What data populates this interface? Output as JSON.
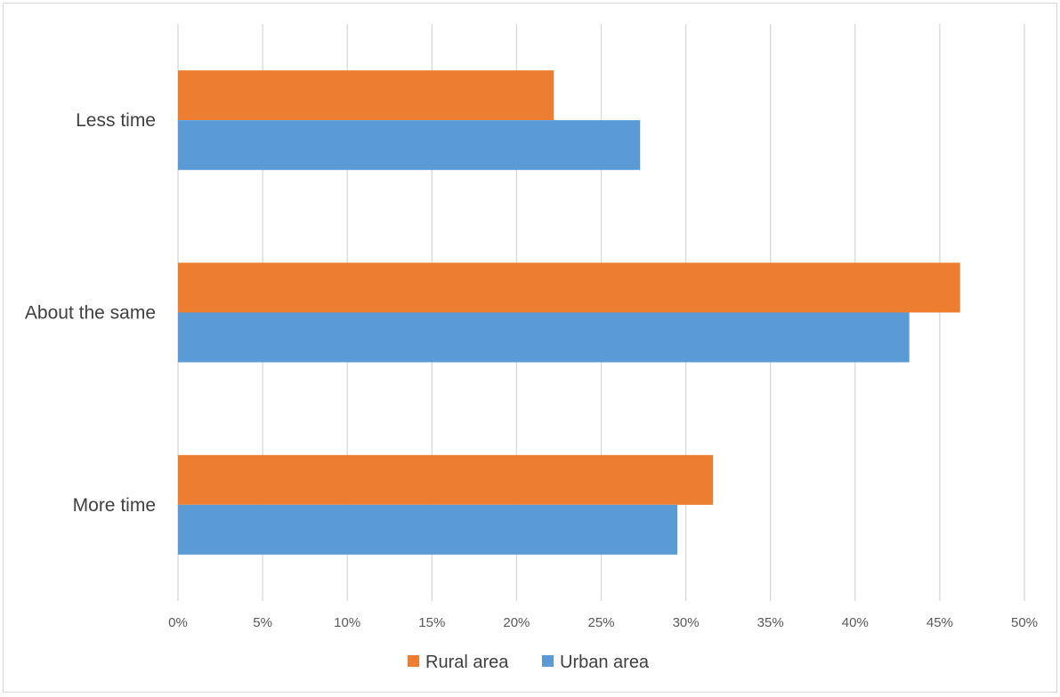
{
  "chart_data": {
    "type": "bar",
    "orientation": "horizontal",
    "title": "",
    "xlabel": "",
    "ylabel": "",
    "categories": [
      "Less time",
      "About the same",
      "More time"
    ],
    "series": [
      {
        "name": "Rural area",
        "color": "#ED7D31",
        "values": [
          22.2,
          46.2,
          31.6
        ]
      },
      {
        "name": "Urban area",
        "color": "#5B9BD5",
        "values": [
          27.3,
          43.2,
          29.5
        ]
      }
    ],
    "xlim": [
      0,
      50
    ],
    "x_ticks": [
      0,
      5,
      10,
      15,
      20,
      25,
      30,
      35,
      40,
      45,
      50
    ],
    "x_tick_labels": [
      "0%",
      "5%",
      "10%",
      "15%",
      "20%",
      "25%",
      "30%",
      "35%",
      "40%",
      "45%",
      "50%"
    ],
    "grid": true,
    "legend_position": "bottom"
  }
}
